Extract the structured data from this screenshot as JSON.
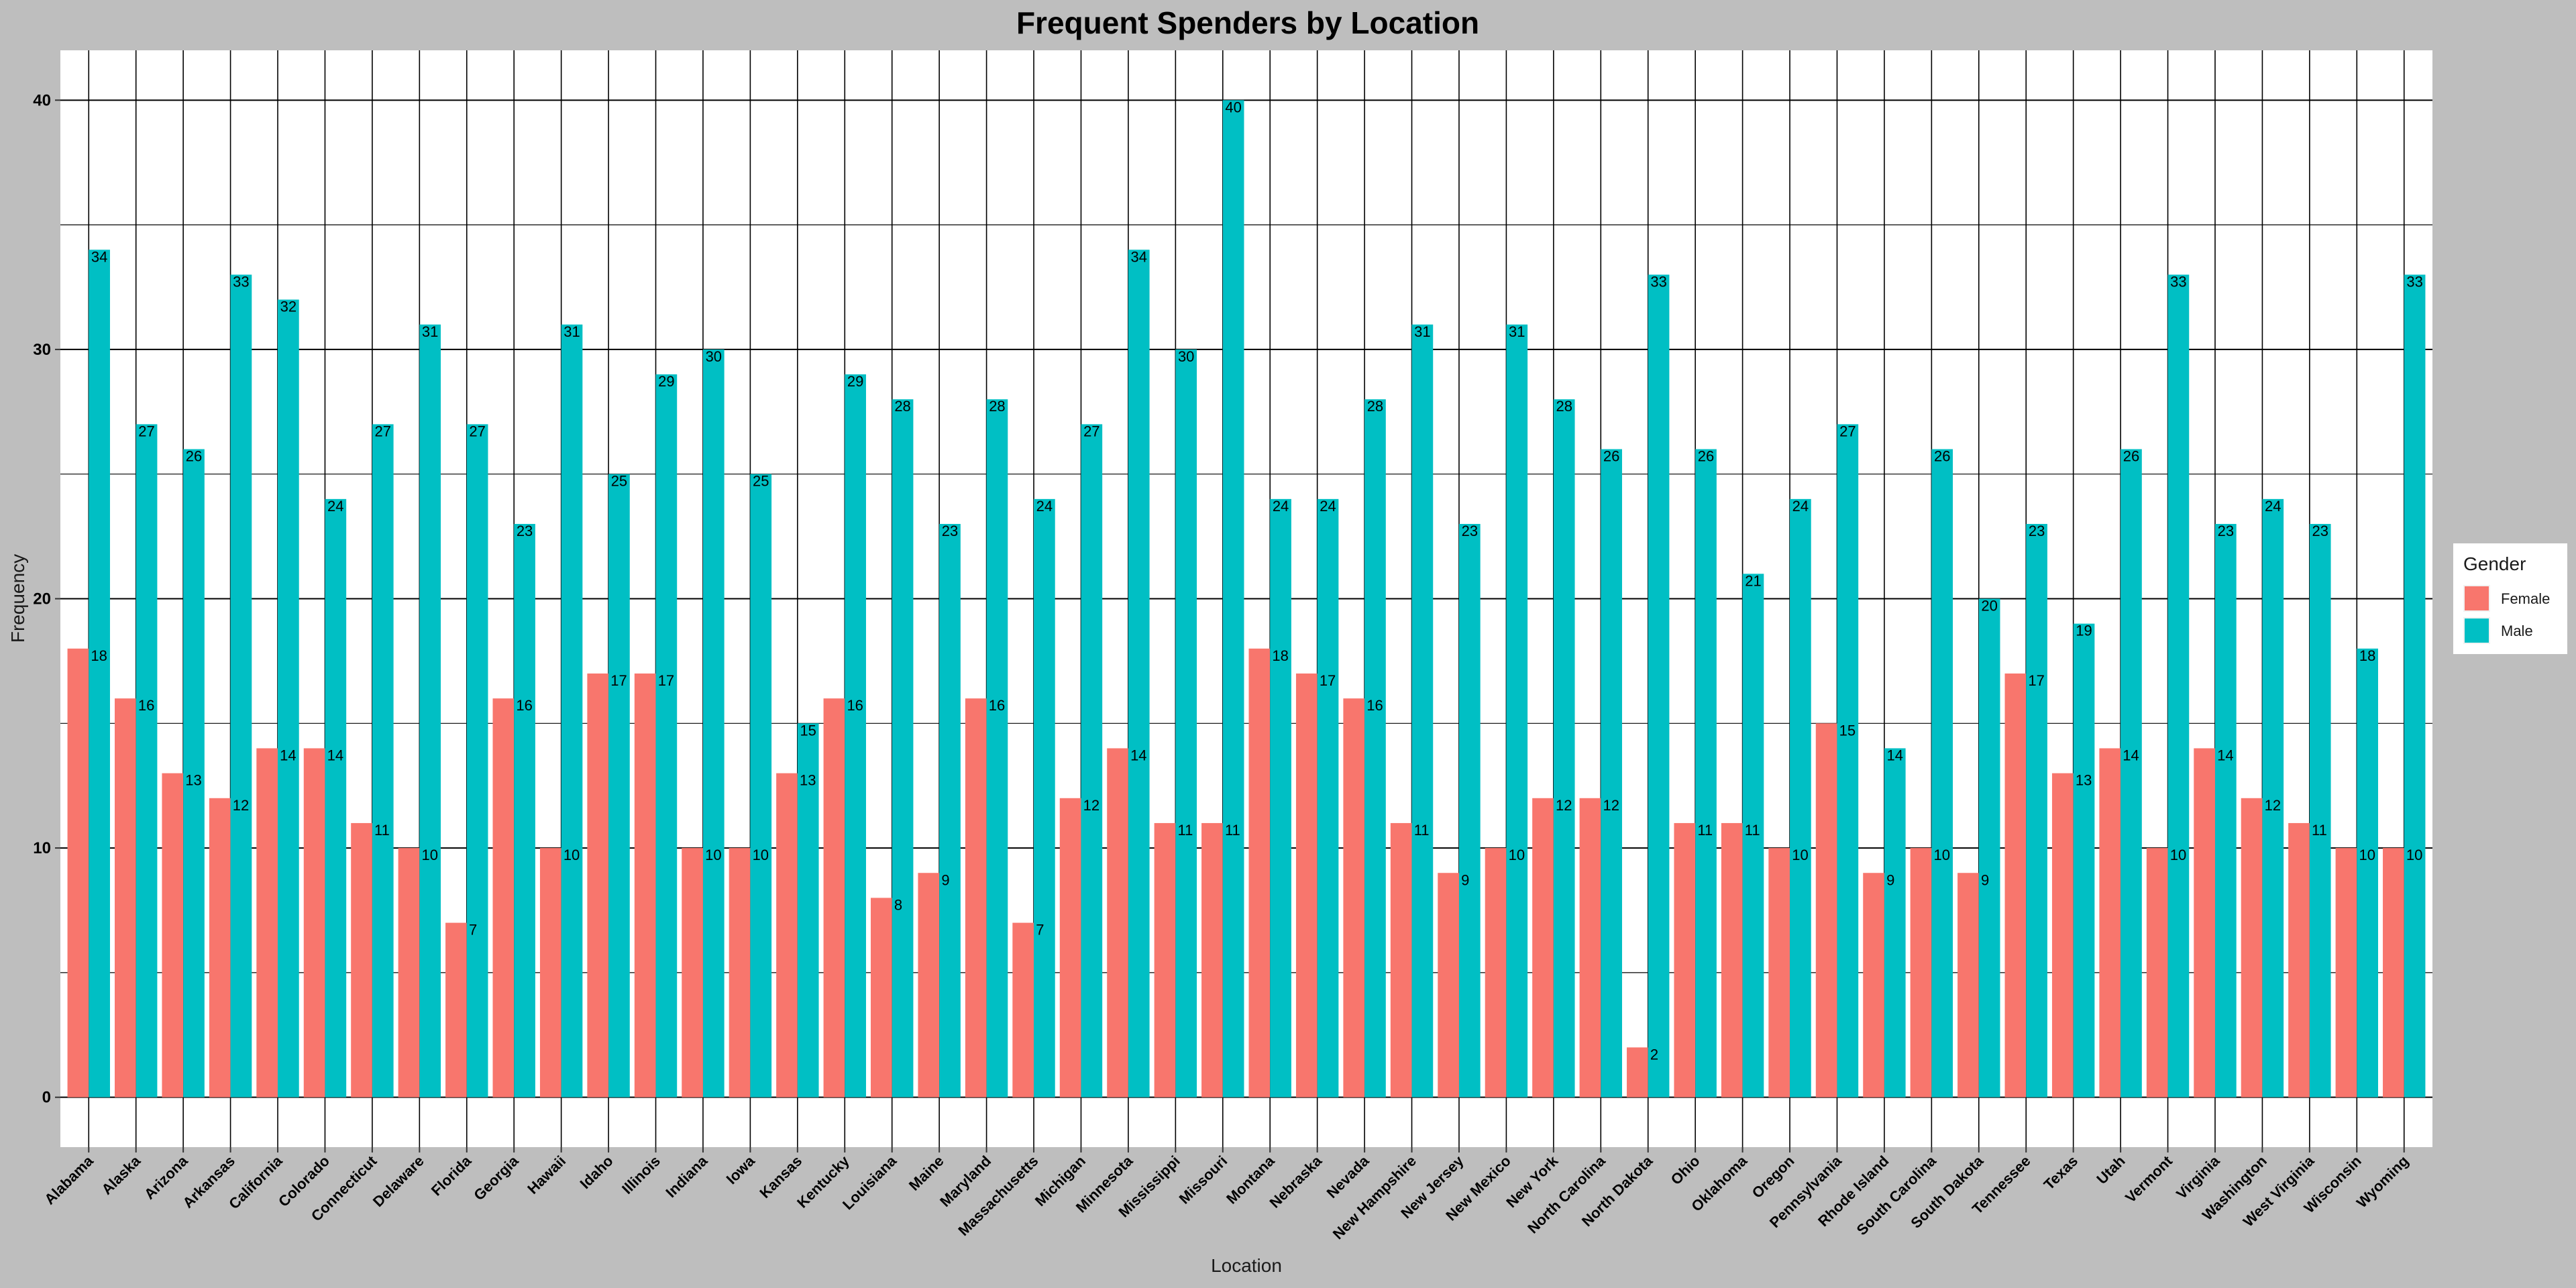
{
  "chart_data": {
    "type": "bar",
    "title": "Frequent Spenders by Location",
    "xlabel": "Location",
    "ylabel": "Frequency",
    "ylim": [
      -2,
      42
    ],
    "yticks": [
      0,
      10,
      20,
      30,
      40
    ],
    "grid": true,
    "legend": {
      "title": "Gender",
      "position": "right"
    },
    "categories": [
      "Alabama",
      "Alaska",
      "Arizona",
      "Arkansas",
      "California",
      "Colorado",
      "Connecticut",
      "Delaware",
      "Florida",
      "Georgia",
      "Hawaii",
      "Idaho",
      "Illinois",
      "Indiana",
      "Iowa",
      "Kansas",
      "Kentucky",
      "Louisiana",
      "Maine",
      "Maryland",
      "Massachusetts",
      "Michigan",
      "Minnesota",
      "Mississippi",
      "Missouri",
      "Montana",
      "Nebraska",
      "Nevada",
      "New Hampshire",
      "New Jersey",
      "New Mexico",
      "New York",
      "North Carolina",
      "North Dakota",
      "Ohio",
      "Oklahoma",
      "Oregon",
      "Pennsylvania",
      "Rhode Island",
      "South Carolina",
      "South Dakota",
      "Tennessee",
      "Texas",
      "Utah",
      "Vermont",
      "Virginia",
      "Washington",
      "West Virginia",
      "Wisconsin",
      "Wyoming"
    ],
    "series": [
      {
        "name": "Female",
        "color": "#f8766d",
        "values": [
          18,
          16,
          13,
          12,
          14,
          14,
          11,
          10,
          7,
          16,
          10,
          17,
          17,
          10,
          10,
          13,
          16,
          8,
          9,
          16,
          7,
          12,
          14,
          11,
          11,
          18,
          17,
          16,
          11,
          9,
          10,
          12,
          12,
          2,
          11,
          11,
          10,
          15,
          9,
          10,
          9,
          17,
          13,
          14,
          10,
          14,
          12,
          11,
          10,
          10
        ]
      },
      {
        "name": "Male",
        "color": "#00bfc4",
        "values": [
          34,
          27,
          26,
          33,
          32,
          24,
          27,
          31,
          27,
          23,
          31,
          25,
          29,
          30,
          25,
          15,
          29,
          28,
          23,
          28,
          24,
          27,
          34,
          30,
          40,
          24,
          24,
          28,
          31,
          23,
          31,
          28,
          26,
          33,
          26,
          21,
          24,
          27,
          14,
          26,
          20,
          23,
          19,
          26,
          33,
          23,
          24,
          23,
          18,
          33
        ]
      }
    ]
  }
}
